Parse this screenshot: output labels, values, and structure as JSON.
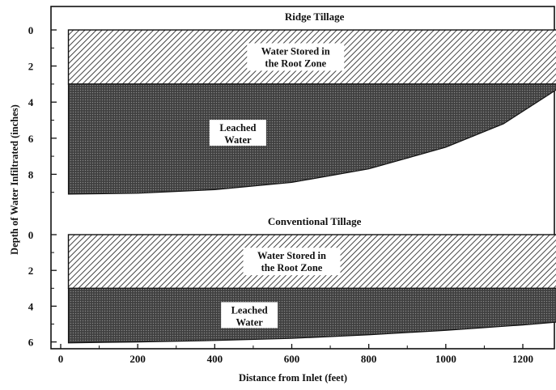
{
  "chart_data": {
    "type": "area",
    "xlabel": "Distance from Inlet (feet)",
    "ylabel": "Depth of Water Infiltrated (inches)",
    "xlim": [
      -20,
      1330
    ],
    "x_ticks": [
      0,
      200,
      400,
      600,
      800,
      1000,
      1200
    ],
    "root_zone_depth": 3,
    "field_x_range": [
      20,
      1310
    ],
    "panels": [
      {
        "title": "Ridge Tillage",
        "ylim": [
          0,
          10
        ],
        "y_ticks": [
          0,
          2,
          4,
          6,
          8
        ],
        "storage_label_lines": [
          "Water Stored in",
          "the Root Zone"
        ],
        "leach_label_lines": [
          "Leached",
          "Water"
        ],
        "storage_label_at": [
          610,
          1.5
        ],
        "leach_label_at": [
          460,
          5.7
        ],
        "series": [
          {
            "name": "Water Stored in the Root Zone",
            "x": [
              20,
              1310
            ],
            "top": [
              0,
              0
            ],
            "bottom": [
              3,
              3
            ]
          },
          {
            "name": "Leached Water",
            "x": [
              20,
              200,
              400,
              600,
              800,
              1000,
              1150,
              1310
            ],
            "top": [
              3,
              3,
              3,
              3,
              3,
              3,
              3,
              3
            ],
            "bottom": [
              9.1,
              9.05,
              8.85,
              8.45,
              7.7,
              6.5,
              5.2,
              3.0
            ]
          }
        ]
      },
      {
        "title": "Conventional Tillage",
        "ylim": [
          0,
          6.2
        ],
        "y_ticks": [
          0,
          2,
          4,
          6
        ],
        "storage_label_lines": [
          "Water Stored in",
          "the Root Zone"
        ],
        "leach_label_lines": [
          "Leached",
          "Water"
        ],
        "storage_label_at": [
          600,
          1.5
        ],
        "leach_label_at": [
          490,
          4.5
        ],
        "series": [
          {
            "name": "Water Stored in the Root Zone",
            "x": [
              20,
              1310
            ],
            "top": [
              0,
              0
            ],
            "bottom": [
              3,
              3
            ]
          },
          {
            "name": "Leached Water",
            "x": [
              20,
              200,
              400,
              600,
              800,
              1000,
              1200,
              1310
            ],
            "top": [
              3,
              3,
              3,
              3,
              3,
              3,
              3,
              3
            ],
            "bottom": [
              6.05,
              6.0,
              5.92,
              5.8,
              5.6,
              5.35,
              5.05,
              4.85
            ]
          }
        ]
      }
    ]
  }
}
